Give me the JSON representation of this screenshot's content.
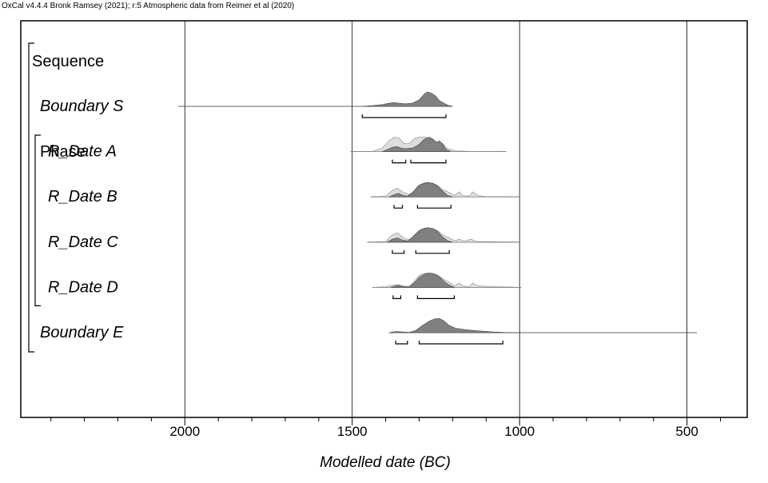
{
  "credit": "OxCal v4.4.4 Bronk Ramsey (2021); r:5 Atmospheric data from Reimer et al (2020)",
  "chart_data": {
    "type": "area",
    "title": "",
    "xlabel": "Modelled date (BC)",
    "ylabel": "",
    "xlim": [
      2490,
      320
    ],
    "x_reversed": true,
    "x_ticks": [
      2000,
      1500,
      1000,
      500
    ],
    "x_minor_step": 100,
    "grid": true,
    "colors": {
      "likelihood": "#dddddd",
      "posterior": "#808080",
      "stroke": "#333333"
    },
    "groups": [
      {
        "label": "Sequence",
        "kind": "sequence",
        "first": 0,
        "last": 5
      },
      {
        "label": "Phase",
        "kind": "phase",
        "first": 1,
        "last": 4
      }
    ],
    "series": [
      {
        "name": "Boundary S",
        "kind": "boundary",
        "range_line": [
          2020,
          1200
        ],
        "posterior": [
          [
            1470,
            0
          ],
          [
            1440,
            0.05
          ],
          [
            1410,
            0.12
          ],
          [
            1390,
            0.22
          ],
          [
            1375,
            0.26
          ],
          [
            1360,
            0.22
          ],
          [
            1340,
            0.18
          ],
          [
            1320,
            0.22
          ],
          [
            1300,
            0.45
          ],
          [
            1285,
            0.85
          ],
          [
            1275,
            1
          ],
          [
            1262,
            0.9
          ],
          [
            1250,
            0.7
          ],
          [
            1240,
            0.4
          ],
          [
            1228,
            0.25
          ],
          [
            1215,
            0.08
          ],
          [
            1200,
            0
          ]
        ],
        "hpd": [
          [
            1470,
            1220
          ]
        ]
      },
      {
        "name": "R_Date A",
        "kind": "date",
        "range_line": [
          1505,
          1040
        ],
        "likelihood": [
          [
            1505,
            0
          ],
          [
            1440,
            0.02
          ],
          [
            1410,
            0.25
          ],
          [
            1390,
            0.75
          ],
          [
            1375,
            1
          ],
          [
            1360,
            0.95
          ],
          [
            1345,
            0.55
          ],
          [
            1330,
            0.55
          ],
          [
            1315,
            0.9
          ],
          [
            1300,
            1
          ],
          [
            1280,
            1
          ],
          [
            1260,
            0.8
          ],
          [
            1245,
            0.7
          ],
          [
            1230,
            0.55
          ],
          [
            1215,
            0.2
          ],
          [
            1190,
            0.05
          ],
          [
            1150,
            0.02
          ],
          [
            1040,
            0
          ]
        ],
        "posterior": [
          [
            1410,
            0
          ],
          [
            1395,
            0.15
          ],
          [
            1380,
            0.3
          ],
          [
            1365,
            0.35
          ],
          [
            1355,
            0.25
          ],
          [
            1340,
            0.2
          ],
          [
            1320,
            0.25
          ],
          [
            1300,
            0.5
          ],
          [
            1285,
            0.85
          ],
          [
            1270,
            1
          ],
          [
            1258,
            0.85
          ],
          [
            1248,
            0.6
          ],
          [
            1240,
            0.75
          ],
          [
            1230,
            0.55
          ],
          [
            1220,
            0.15
          ],
          [
            1205,
            0
          ]
        ],
        "hpd": [
          [
            1380,
            1340
          ],
          [
            1325,
            1220
          ]
        ]
      },
      {
        "name": "R_Date B",
        "kind": "date",
        "range_line": [
          1445,
          1000
        ],
        "likelihood": [
          [
            1445,
            0
          ],
          [
            1400,
            0.05
          ],
          [
            1380,
            0.45
          ],
          [
            1365,
            0.6
          ],
          [
            1350,
            0.35
          ],
          [
            1330,
            0.15
          ],
          [
            1315,
            0.4
          ],
          [
            1300,
            0.85
          ],
          [
            1280,
            1
          ],
          [
            1260,
            0.95
          ],
          [
            1245,
            0.8
          ],
          [
            1230,
            0.5
          ],
          [
            1210,
            0.3
          ],
          [
            1195,
            0.1
          ],
          [
            1180,
            0.35
          ],
          [
            1170,
            0.1
          ],
          [
            1150,
            0.05
          ],
          [
            1140,
            0.35
          ],
          [
            1125,
            0.1
          ],
          [
            1100,
            0.02
          ],
          [
            1000,
            0
          ]
        ],
        "posterior": [
          [
            1390,
            0
          ],
          [
            1375,
            0.15
          ],
          [
            1362,
            0.25
          ],
          [
            1350,
            0.12
          ],
          [
            1335,
            0.05
          ],
          [
            1320,
            0.3
          ],
          [
            1305,
            0.7
          ],
          [
            1290,
            0.9
          ],
          [
            1275,
            1
          ],
          [
            1260,
            0.95
          ],
          [
            1245,
            0.75
          ],
          [
            1230,
            0.4
          ],
          [
            1215,
            0.1
          ],
          [
            1200,
            0
          ]
        ],
        "hpd": [
          [
            1375,
            1350
          ],
          [
            1305,
            1205
          ]
        ]
      },
      {
        "name": "R_Date C",
        "kind": "date",
        "range_line": [
          1455,
          1000
        ],
        "likelihood": [
          [
            1455,
            0
          ],
          [
            1400,
            0.05
          ],
          [
            1380,
            0.5
          ],
          [
            1365,
            0.65
          ],
          [
            1350,
            0.35
          ],
          [
            1330,
            0.15
          ],
          [
            1315,
            0.4
          ],
          [
            1300,
            0.85
          ],
          [
            1280,
            1
          ],
          [
            1260,
            0.95
          ],
          [
            1245,
            0.8
          ],
          [
            1230,
            0.5
          ],
          [
            1210,
            0.3
          ],
          [
            1195,
            0.1
          ],
          [
            1180,
            0.2
          ],
          [
            1165,
            0.08
          ],
          [
            1145,
            0.2
          ],
          [
            1130,
            0.05
          ],
          [
            1000,
            0
          ]
        ],
        "posterior": [
          [
            1395,
            0
          ],
          [
            1380,
            0.2
          ],
          [
            1365,
            0.3
          ],
          [
            1350,
            0.15
          ],
          [
            1335,
            0.08
          ],
          [
            1320,
            0.35
          ],
          [
            1305,
            0.7
          ],
          [
            1290,
            0.9
          ],
          [
            1275,
            1
          ],
          [
            1260,
            0.95
          ],
          [
            1245,
            0.75
          ],
          [
            1230,
            0.35
          ],
          [
            1215,
            0.1
          ],
          [
            1200,
            0
          ]
        ],
        "hpd": [
          [
            1380,
            1345
          ],
          [
            1310,
            1210
          ]
        ]
      },
      {
        "name": "R_Date D",
        "kind": "date",
        "range_line": [
          1440,
          995
        ],
        "likelihood": [
          [
            1440,
            0
          ],
          [
            1400,
            0.05
          ],
          [
            1380,
            0.15
          ],
          [
            1365,
            0.2
          ],
          [
            1350,
            0.1
          ],
          [
            1330,
            0.05
          ],
          [
            1315,
            0.4
          ],
          [
            1300,
            0.85
          ],
          [
            1280,
            1
          ],
          [
            1260,
            0.95
          ],
          [
            1245,
            0.85
          ],
          [
            1230,
            0.6
          ],
          [
            1210,
            0.35
          ],
          [
            1195,
            0.1
          ],
          [
            1180,
            0.3
          ],
          [
            1170,
            0.1
          ],
          [
            1150,
            0.05
          ],
          [
            1140,
            0.3
          ],
          [
            1125,
            0.1
          ],
          [
            995,
            0
          ]
        ],
        "posterior": [
          [
            1385,
            0
          ],
          [
            1370,
            0.1
          ],
          [
            1360,
            0.15
          ],
          [
            1345,
            0.05
          ],
          [
            1330,
            0.05
          ],
          [
            1315,
            0.3
          ],
          [
            1300,
            0.7
          ],
          [
            1285,
            0.9
          ],
          [
            1270,
            1
          ],
          [
            1255,
            0.95
          ],
          [
            1240,
            0.75
          ],
          [
            1225,
            0.4
          ],
          [
            1210,
            0.15
          ],
          [
            1195,
            0
          ]
        ],
        "hpd": [
          [
            1378,
            1355
          ],
          [
            1305,
            1195
          ]
        ]
      },
      {
        "name": "Boundary E",
        "kind": "boundary",
        "range_line": [
          1390,
          470
        ],
        "posterior": [
          [
            1390,
            0
          ],
          [
            1370,
            0.08
          ],
          [
            1350,
            0.05
          ],
          [
            1330,
            0.02
          ],
          [
            1310,
            0.15
          ],
          [
            1290,
            0.5
          ],
          [
            1270,
            0.8
          ],
          [
            1255,
            0.95
          ],
          [
            1240,
            1
          ],
          [
            1225,
            0.8
          ],
          [
            1210,
            0.5
          ],
          [
            1190,
            0.3
          ],
          [
            1160,
            0.2
          ],
          [
            1120,
            0.12
          ],
          [
            1080,
            0.05
          ],
          [
            1040,
            0.01
          ],
          [
            1000,
            0
          ]
        ],
        "hpd": [
          [
            1370,
            1335
          ],
          [
            1300,
            1050
          ]
        ]
      }
    ]
  }
}
